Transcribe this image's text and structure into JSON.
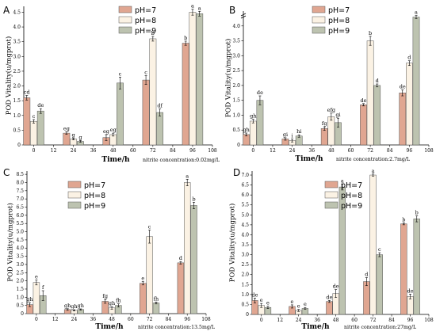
{
  "colors": {
    "pH7": "#e0a691",
    "pH8": "#fbf2e4",
    "pH9": "#bdc3b0"
  },
  "chart_data": [
    {
      "type": "bar",
      "panel_label": "A",
      "xlabel": "Time/h",
      "xnote": "nitrite concentration:0.02mg/L",
      "ylabel": "POD Vitality(u/mgprot)",
      "xlim": [
        -6,
        108
      ],
      "ylim": [
        0,
        4.7
      ],
      "xticks": [
        0,
        12,
        24,
        36,
        48,
        60,
        72,
        84,
        96,
        108
      ],
      "yticks": [
        0,
        0.5,
        1.0,
        1.5,
        2.0,
        2.5,
        3.0,
        3.5,
        4.0,
        4.5
      ],
      "ytick_labels": [
        "0",
        "0.5",
        "1.0",
        "1.5",
        "2.0",
        "2.5",
        "3.0",
        "3.5",
        "4.0",
        "4.5"
      ],
      "legend_position": "top-right",
      "x": [
        0,
        24,
        48,
        72,
        96
      ],
      "series": [
        {
          "name": "pH=7",
          "values": [
            1.6,
            0.4,
            0.25,
            2.2,
            3.45
          ],
          "errors": [
            0.08,
            0.04,
            0.1,
            0.15,
            0.07
          ],
          "labels": [
            "cd",
            "eg",
            "eg",
            "c",
            "b"
          ]
        },
        {
          "name": "pH=8",
          "values": [
            0.8,
            0.2,
            0.35,
            3.6,
            4.5
          ],
          "errors": [
            0.06,
            0.03,
            0.05,
            0.08,
            0.1
          ],
          "labels": [
            "c",
            "g",
            "eg",
            "b",
            "a"
          ]
        },
        {
          "name": "pH=9",
          "values": [
            1.15,
            0.12,
            2.1,
            1.1,
            4.45
          ],
          "errors": [
            0.08,
            0.03,
            0.2,
            0.12,
            0.08
          ],
          "labels": [
            "de",
            "g",
            "c",
            "df",
            "a"
          ]
        }
      ]
    },
    {
      "type": "bar",
      "panel_label": "B",
      "xlabel": "Time/h",
      "xnote": "nitrite concentration:2.7mg/L",
      "ylabel": "POD Vitality(u/mgprot)",
      "xlim": [
        -6,
        108
      ],
      "ylim": [
        0,
        4.5
      ],
      "axis_break": true,
      "xticks": [
        0,
        12,
        24,
        36,
        48,
        60,
        72,
        84,
        96,
        108
      ],
      "yticks": [
        0,
        0.5,
        1.0,
        1.5,
        2.0,
        2.5,
        3.0,
        3.5,
        4.0
      ],
      "ytick_labels": [
        "0",
        "0.5",
        "1.0",
        "1.5",
        "2.0",
        "2.5",
        "3.0",
        "3.5",
        "4.0"
      ],
      "legend_position": "top-left",
      "x": [
        0,
        24,
        48,
        72,
        96
      ],
      "series": [
        {
          "name": "pH=7",
          "values": [
            0.35,
            0.2,
            0.55,
            1.35,
            1.75
          ],
          "errors": [
            0.05,
            0.04,
            0.06,
            0.04,
            0.1
          ],
          "labels": [
            "gh",
            "gi",
            "fg",
            "de",
            "de"
          ]
        },
        {
          "name": "pH=8",
          "values": [
            0.8,
            0.15,
            0.95,
            3.5,
            2.75
          ],
          "errors": [
            0.06,
            0.05,
            0.12,
            0.15,
            0.08
          ],
          "labels": [
            "gh",
            "i",
            "efg",
            "b",
            "d"
          ]
        },
        {
          "name": "pH=9",
          "values": [
            1.5,
            0.3,
            0.75,
            2.0,
            4.3
          ],
          "errors": [
            0.15,
            0.04,
            0.15,
            0.05,
            0.05
          ],
          "labels": [
            "de",
            "hi",
            "gi",
            "d",
            "a"
          ]
        }
      ]
    },
    {
      "type": "bar",
      "panel_label": "C",
      "xlabel": "Time/h",
      "xnote": "nitrite concentration:13.5mg/L",
      "ylabel": "POD Vitality(u/mgprot)",
      "xlim": [
        -6,
        108
      ],
      "ylim": [
        0,
        8.7
      ],
      "xticks": [
        0,
        12,
        24,
        36,
        48,
        60,
        72,
        84,
        96,
        108
      ],
      "yticks": [
        0,
        0.5,
        1.0,
        1.5,
        2.0,
        2.5,
        3.0,
        3.5,
        4.0,
        4.5,
        5.0,
        5.5,
        6.0,
        6.5,
        7.0,
        7.5,
        8.0,
        8.5
      ],
      "ytick_labels": [
        "0",
        "0.5",
        "1.0",
        "1.5",
        "2.0",
        "2.5",
        "3.0",
        "3.5",
        "4.0",
        "4.5",
        "5.0",
        "5.5",
        "6.0",
        "6.5",
        "7.0",
        "7.5",
        "8.0",
        "8.5"
      ],
      "legend_position": "top-left",
      "x": [
        0,
        24,
        48,
        72,
        96
      ],
      "series": [
        {
          "name": "pH=7",
          "values": [
            0.55,
            0.25,
            0.75,
            1.85,
            3.1
          ],
          "errors": [
            0.12,
            0.05,
            0.12,
            0.1,
            0.08
          ],
          "labels": [
            "gh",
            "gh",
            "fg",
            "e",
            "d"
          ]
        },
        {
          "name": "pH=8",
          "values": [
            1.9,
            0.2,
            0.35,
            4.7,
            8.0
          ],
          "errors": [
            0.15,
            0.04,
            0.08,
            0.4,
            0.2
          ],
          "labels": [
            "e",
            "gh",
            "gh",
            "c",
            "a"
          ]
        },
        {
          "name": "pH=9",
          "values": [
            1.1,
            0.25,
            0.5,
            0.65,
            6.6
          ],
          "errors": [
            0.3,
            0.04,
            0.1,
            0.06,
            0.2
          ],
          "labels": [
            "f",
            "gh",
            "fh",
            "fh",
            "b"
          ]
        }
      ]
    },
    {
      "type": "bar",
      "panel_label": "D",
      "xlabel": "Time/h",
      "xnote": "nitrite concentration:27mg/L",
      "ylabel": "POD Vitality(u/mgprot)",
      "xlim": [
        -6,
        108
      ],
      "ylim": [
        0,
        7.2
      ],
      "xticks": [
        0,
        12,
        24,
        36,
        48,
        60,
        72,
        84,
        96,
        108
      ],
      "yticks": [
        0,
        0.5,
        1.0,
        1.5,
        2.0,
        2.5,
        3.0,
        3.5,
        4.0,
        4.5,
        5.0,
        5.5,
        6.0,
        6.5,
        7.0
      ],
      "ytick_labels": [
        "0",
        "0.5",
        "1.0",
        "1.5",
        "2.0",
        "2.5",
        "3.0",
        "3.5",
        "4.0",
        "4.5",
        "5.0",
        "5.5",
        "6.0",
        "6.5",
        "7.0"
      ],
      "legend_position": "top-center",
      "x": [
        0,
        24,
        48,
        72,
        96
      ],
      "series": [
        {
          "name": "pH=7",
          "values": [
            0.7,
            0.4,
            0.65,
            1.65,
            4.55
          ],
          "errors": [
            0.12,
            0.08,
            0.05,
            0.2,
            0.05
          ],
          "labels": [
            "de",
            "e",
            "de",
            "d",
            "b"
          ]
        },
        {
          "name": "pH=8",
          "values": [
            0.45,
            0.2,
            1.05,
            7.0,
            0.9
          ],
          "errors": [
            0.1,
            0.05,
            0.2,
            0.05,
            0.12
          ],
          "labels": [
            "e",
            "e",
            "de",
            "a",
            "de"
          ]
        },
        {
          "name": "pH=9",
          "values": [
            0.35,
            0.3,
            6.4,
            3.0,
            4.8
          ],
          "errors": [
            0.06,
            0.05,
            0.15,
            0.1,
            0.15
          ],
          "labels": [
            "e",
            "e",
            "a",
            "c",
            "b"
          ]
        }
      ]
    }
  ]
}
